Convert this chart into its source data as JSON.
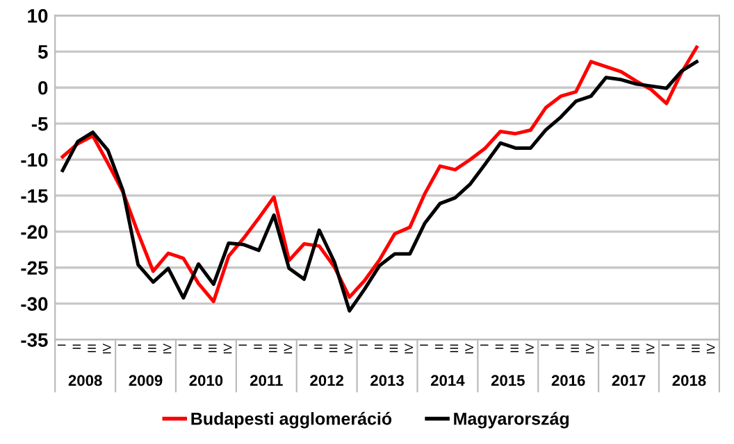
{
  "chart_data": {
    "type": "line",
    "categories": [
      "I",
      "II",
      "III",
      "IV",
      "I",
      "II",
      "III",
      "IV",
      "I",
      "II",
      "III",
      "IV",
      "I",
      "II",
      "III",
      "IV",
      "I",
      "II",
      "III",
      "IV",
      "I",
      "II",
      "III",
      "IV",
      "I",
      "II",
      "III",
      "IV",
      "I",
      "II",
      "III",
      "IV",
      "I",
      "II",
      "III",
      "IV",
      "I",
      "II",
      "III",
      "IV",
      "I",
      "II",
      "III",
      "IV"
    ],
    "series": [
      {
        "name": "Budapesti agglomeráció",
        "color": "#ff0000",
        "values": [
          -9.6,
          -7.8,
          -6.7,
          -10.5,
          -14.5,
          -20.2,
          -25.5,
          -23.0,
          -23.7,
          -27.2,
          -29.7,
          -23.4,
          -20.9,
          -18.1,
          -15.2,
          -24.0,
          -21.7,
          -22.0,
          -24.9,
          -29.1,
          -26.8,
          -23.9,
          -20.3,
          -19.4,
          -14.7,
          -10.9,
          -11.4,
          -10.0,
          -8.4,
          -6.1,
          -6.4,
          -5.9,
          -2.8,
          -1.2,
          -0.6,
          3.6,
          2.9,
          2.2,
          0.9,
          -0.3,
          -2.2,
          2.1,
          5.6,
          null
        ]
      },
      {
        "name": "Magyarország",
        "color": "#000000",
        "values": [
          -11.5,
          -7.5,
          -6.2,
          -8.7,
          -14.3,
          -24.6,
          -27.0,
          -25.1,
          -29.2,
          -24.5,
          -27.3,
          -21.6,
          -21.8,
          -22.6,
          -17.7,
          -25.1,
          -26.6,
          -19.8,
          -24.2,
          -31.0,
          -28.0,
          -24.7,
          -23.1,
          -23.1,
          -18.8,
          -16.1,
          -15.3,
          -13.4,
          -10.6,
          -7.7,
          -8.4,
          -8.4,
          -5.9,
          -4.1,
          -1.9,
          -1.2,
          1.4,
          1.1,
          0.5,
          0.2,
          -0.1,
          2.3,
          3.6,
          null
        ]
      }
    ],
    "annotations": [
      "2008",
      "2009",
      "2010",
      "2011",
      "2012",
      "2013",
      "2014",
      "2015",
      "2016",
      "2017",
      "2018"
    ],
    "ylim": [
      -35,
      10
    ],
    "yticks": [
      -35,
      -30,
      -25,
      -20,
      -15,
      -10,
      -5,
      0,
      5,
      10
    ],
    "grid": "y",
    "legend": "bottom",
    "marker": "none",
    "line_style": "solid"
  }
}
